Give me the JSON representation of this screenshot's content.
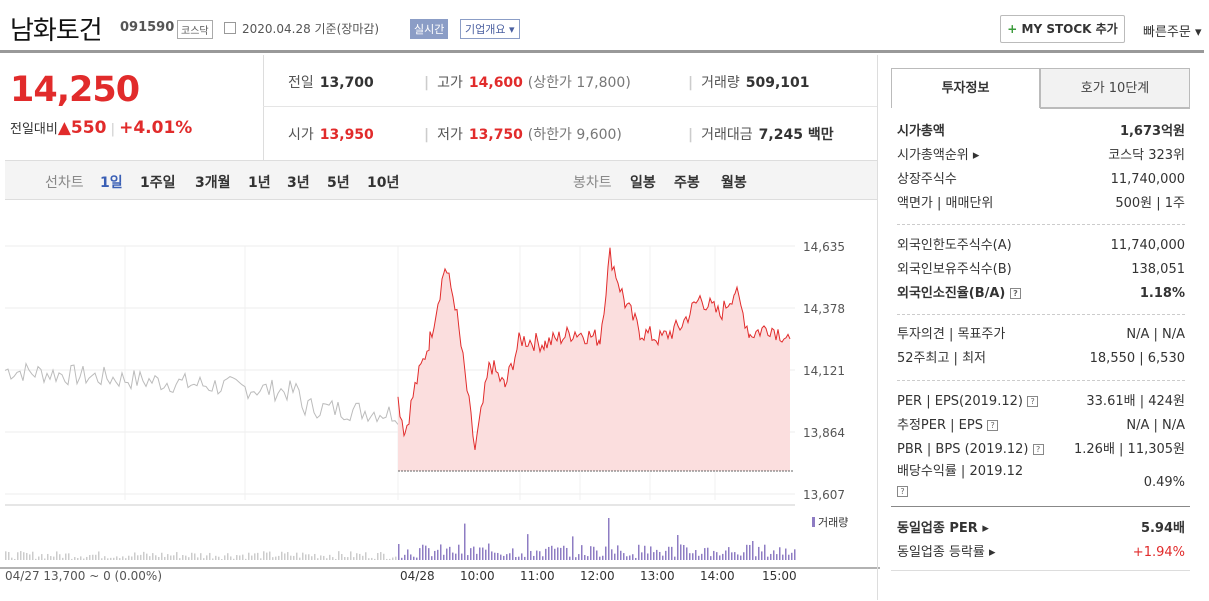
{
  "header": {
    "company": "남화토건",
    "code": "091590",
    "market": "코스닥",
    "date": "2020.04.28 기준(장마감)",
    "realtime": "실시간",
    "corp_info": "기업개요",
    "mystock": "MY STOCK 추가",
    "quick_order": "빠른주문"
  },
  "price": {
    "current": "14,250",
    "change_label": "전일대비",
    "change": "550",
    "change_pct": "+4.01%"
  },
  "quote": {
    "prev_label": "전일",
    "prev": "13,700",
    "high_label": "고가",
    "high": "14,600",
    "upper": "(상한가 17,800)",
    "vol_label": "거래량",
    "vol": "509,101",
    "open_label": "시가",
    "open": "13,950",
    "low_label": "저가",
    "low": "13,750",
    "lower": "(하한가 9,600)",
    "amt_label": "거래대금",
    "amt": "7,245",
    "amt_unit": "백만"
  },
  "periods": {
    "label": "선차트",
    "items": [
      "1일",
      "1주일",
      "3개월",
      "1년",
      "3년",
      "5년",
      "10년"
    ],
    "candle_label": "봉차트",
    "candle": [
      "일봉",
      "주봉",
      "월봉"
    ]
  },
  "chart_data": {
    "type": "line",
    "y_ticks": [
      "14,635",
      "14,378",
      "14,121",
      "13,864",
      "13,607"
    ],
    "x_ticks": [
      "04/28",
      "10:00",
      "11:00",
      "12:00",
      "13:00",
      "14:00",
      "15:00"
    ],
    "prev_day_label": "04/27  13,700 ~ 0 (0.00%)",
    "volume_label": "거래량",
    "ylim": [
      13607,
      14635
    ],
    "prev_close": 13700
  },
  "tabs": [
    "투자정보",
    "호가 10단계"
  ],
  "info": {
    "market_cap": [
      "시가총액",
      "1,673억원"
    ],
    "cap_rank": [
      "시가총액순위",
      "코스닥 323위"
    ],
    "shares": [
      "상장주식수",
      "11,740,000"
    ],
    "par": [
      "액면가 | 매매단위",
      "500원 | 1주"
    ],
    "foreign_limit": [
      "외국인한도주식수(A)",
      "11,740,000"
    ],
    "foreign_hold": [
      "외국인보유주식수(B)",
      "138,051"
    ],
    "foreign_ratio": [
      "외국인소진율(B/A)",
      "1.18%"
    ],
    "opinion": [
      "투자의견 | 목표주가",
      "N/A | N/A"
    ],
    "w52": [
      "52주최고 | 최저",
      "18,550 | 6,530"
    ],
    "per": [
      "PER | EPS(2019.12)",
      "33.61배 | 424원"
    ],
    "est_per": [
      "추정PER | EPS",
      "N/A | N/A"
    ],
    "pbr": [
      "PBR | BPS (2019.12)",
      "1.26배 | 11,305원"
    ],
    "div": [
      "배당수익률 | 2019.12",
      "0.49%"
    ],
    "sector_per": [
      "동일업종 PER",
      "5.94배"
    ],
    "sector_rate": [
      "동일업종 등락률",
      "+1.94%"
    ]
  },
  "colors": {
    "up": "#e12b2b",
    "accent": "#3a5fb5"
  }
}
